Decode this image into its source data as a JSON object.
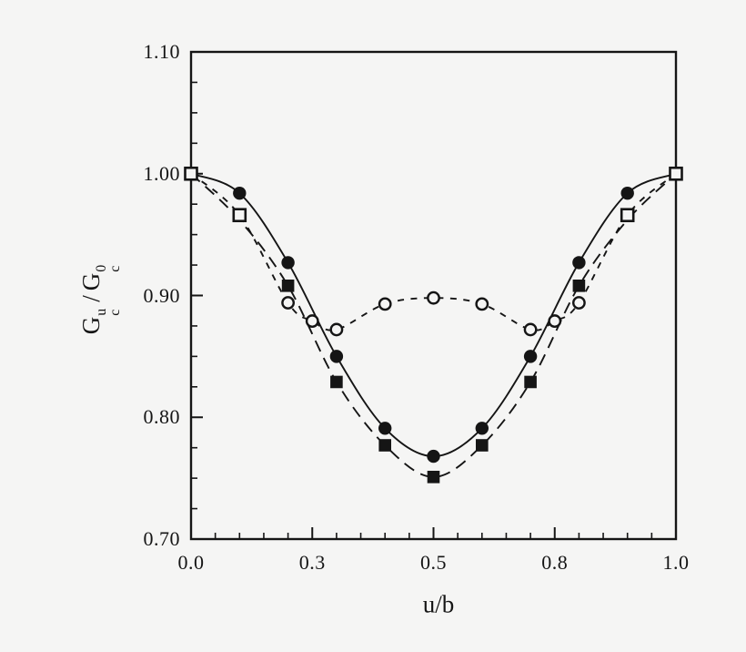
{
  "figure": {
    "background": "#f5f5f4",
    "ink": "#151515"
  },
  "chart_data": {
    "type": "line",
    "title": "",
    "xlabel": "u/b",
    "ylabel": "Gc^u / Gc^0",
    "ylabel_parts": {
      "g1": "G",
      "g1_sup": "u",
      "g1_sub": "c",
      "slash": "/",
      "g2": "G",
      "g2_sup": "0",
      "g2_sub": "c"
    },
    "xlim": [
      0.0,
      1.0
    ],
    "ylim": [
      0.7,
      1.1
    ],
    "grid": false,
    "legend": "none",
    "x_major_ticks": {
      "positions": [
        0.0,
        0.25,
        0.5,
        0.75,
        1.0
      ],
      "labels": [
        "0.0",
        "0.3",
        "0.5",
        "0.8",
        "1.0"
      ]
    },
    "x_minor_tick_step": 0.05,
    "y_major_ticks": {
      "positions": [
        0.7,
        0.8,
        0.9,
        1.0,
        1.1
      ],
      "labels": [
        "0.70",
        "0.80",
        "0.90",
        "1.00",
        "1.10"
      ]
    },
    "y_minor_tick_step": 0.025,
    "series": [
      {
        "name": "solid-line-filled-circles",
        "line": "solid",
        "marker": "filled-circle",
        "points": [
          [
            0.0,
            1.0
          ],
          [
            0.1,
            0.984
          ],
          [
            0.2,
            0.927
          ],
          [
            0.3,
            0.85
          ],
          [
            0.4,
            0.791
          ],
          [
            0.5,
            0.768
          ],
          [
            0.6,
            0.791
          ],
          [
            0.7,
            0.85
          ],
          [
            0.8,
            0.927
          ],
          [
            0.9,
            0.984
          ],
          [
            1.0,
            1.0
          ]
        ],
        "marker_points": [
          [
            0.1,
            0.984
          ],
          [
            0.2,
            0.927
          ],
          [
            0.3,
            0.85
          ],
          [
            0.4,
            0.791
          ],
          [
            0.5,
            0.768
          ],
          [
            0.6,
            0.791
          ],
          [
            0.7,
            0.85
          ],
          [
            0.8,
            0.927
          ],
          [
            0.9,
            0.984
          ]
        ]
      },
      {
        "name": "long-dash-line-filled-squares",
        "line": "long-dash",
        "marker": "filled-square",
        "points": [
          [
            0.0,
            1.0
          ],
          [
            0.1,
            0.962
          ],
          [
            0.2,
            0.908
          ],
          [
            0.3,
            0.829
          ],
          [
            0.4,
            0.777
          ],
          [
            0.5,
            0.751
          ],
          [
            0.6,
            0.777
          ],
          [
            0.7,
            0.829
          ],
          [
            0.8,
            0.908
          ],
          [
            0.9,
            0.962
          ],
          [
            1.0,
            1.0
          ]
        ],
        "marker_points": [
          [
            0.2,
            0.908
          ],
          [
            0.3,
            0.829
          ],
          [
            0.4,
            0.777
          ],
          [
            0.5,
            0.751
          ],
          [
            0.6,
            0.777
          ],
          [
            0.7,
            0.829
          ],
          [
            0.8,
            0.908
          ]
        ]
      },
      {
        "name": "short-dash-line-open-circles",
        "line": "short-dash",
        "marker": "open-circle",
        "points": [
          [
            0.0,
            1.0
          ],
          [
            0.1,
            0.966
          ],
          [
            0.2,
            0.894
          ],
          [
            0.25,
            0.879
          ],
          [
            0.3,
            0.872
          ],
          [
            0.4,
            0.893
          ],
          [
            0.5,
            0.898
          ],
          [
            0.6,
            0.893
          ],
          [
            0.7,
            0.872
          ],
          [
            0.75,
            0.879
          ],
          [
            0.8,
            0.894
          ],
          [
            0.9,
            0.966
          ],
          [
            1.0,
            1.0
          ]
        ],
        "marker_points": [
          [
            0.2,
            0.894
          ],
          [
            0.25,
            0.879
          ],
          [
            0.3,
            0.872
          ],
          [
            0.4,
            0.893
          ],
          [
            0.5,
            0.898
          ],
          [
            0.6,
            0.893
          ],
          [
            0.7,
            0.872
          ],
          [
            0.75,
            0.879
          ],
          [
            0.8,
            0.894
          ]
        ]
      },
      {
        "name": "endpoint-open-squares",
        "line": "none",
        "marker": "open-square",
        "points": [],
        "marker_points": [
          [
            0.0,
            1.0
          ],
          [
            0.1,
            0.966
          ],
          [
            0.9,
            0.966
          ],
          [
            1.0,
            1.0
          ]
        ]
      }
    ]
  }
}
